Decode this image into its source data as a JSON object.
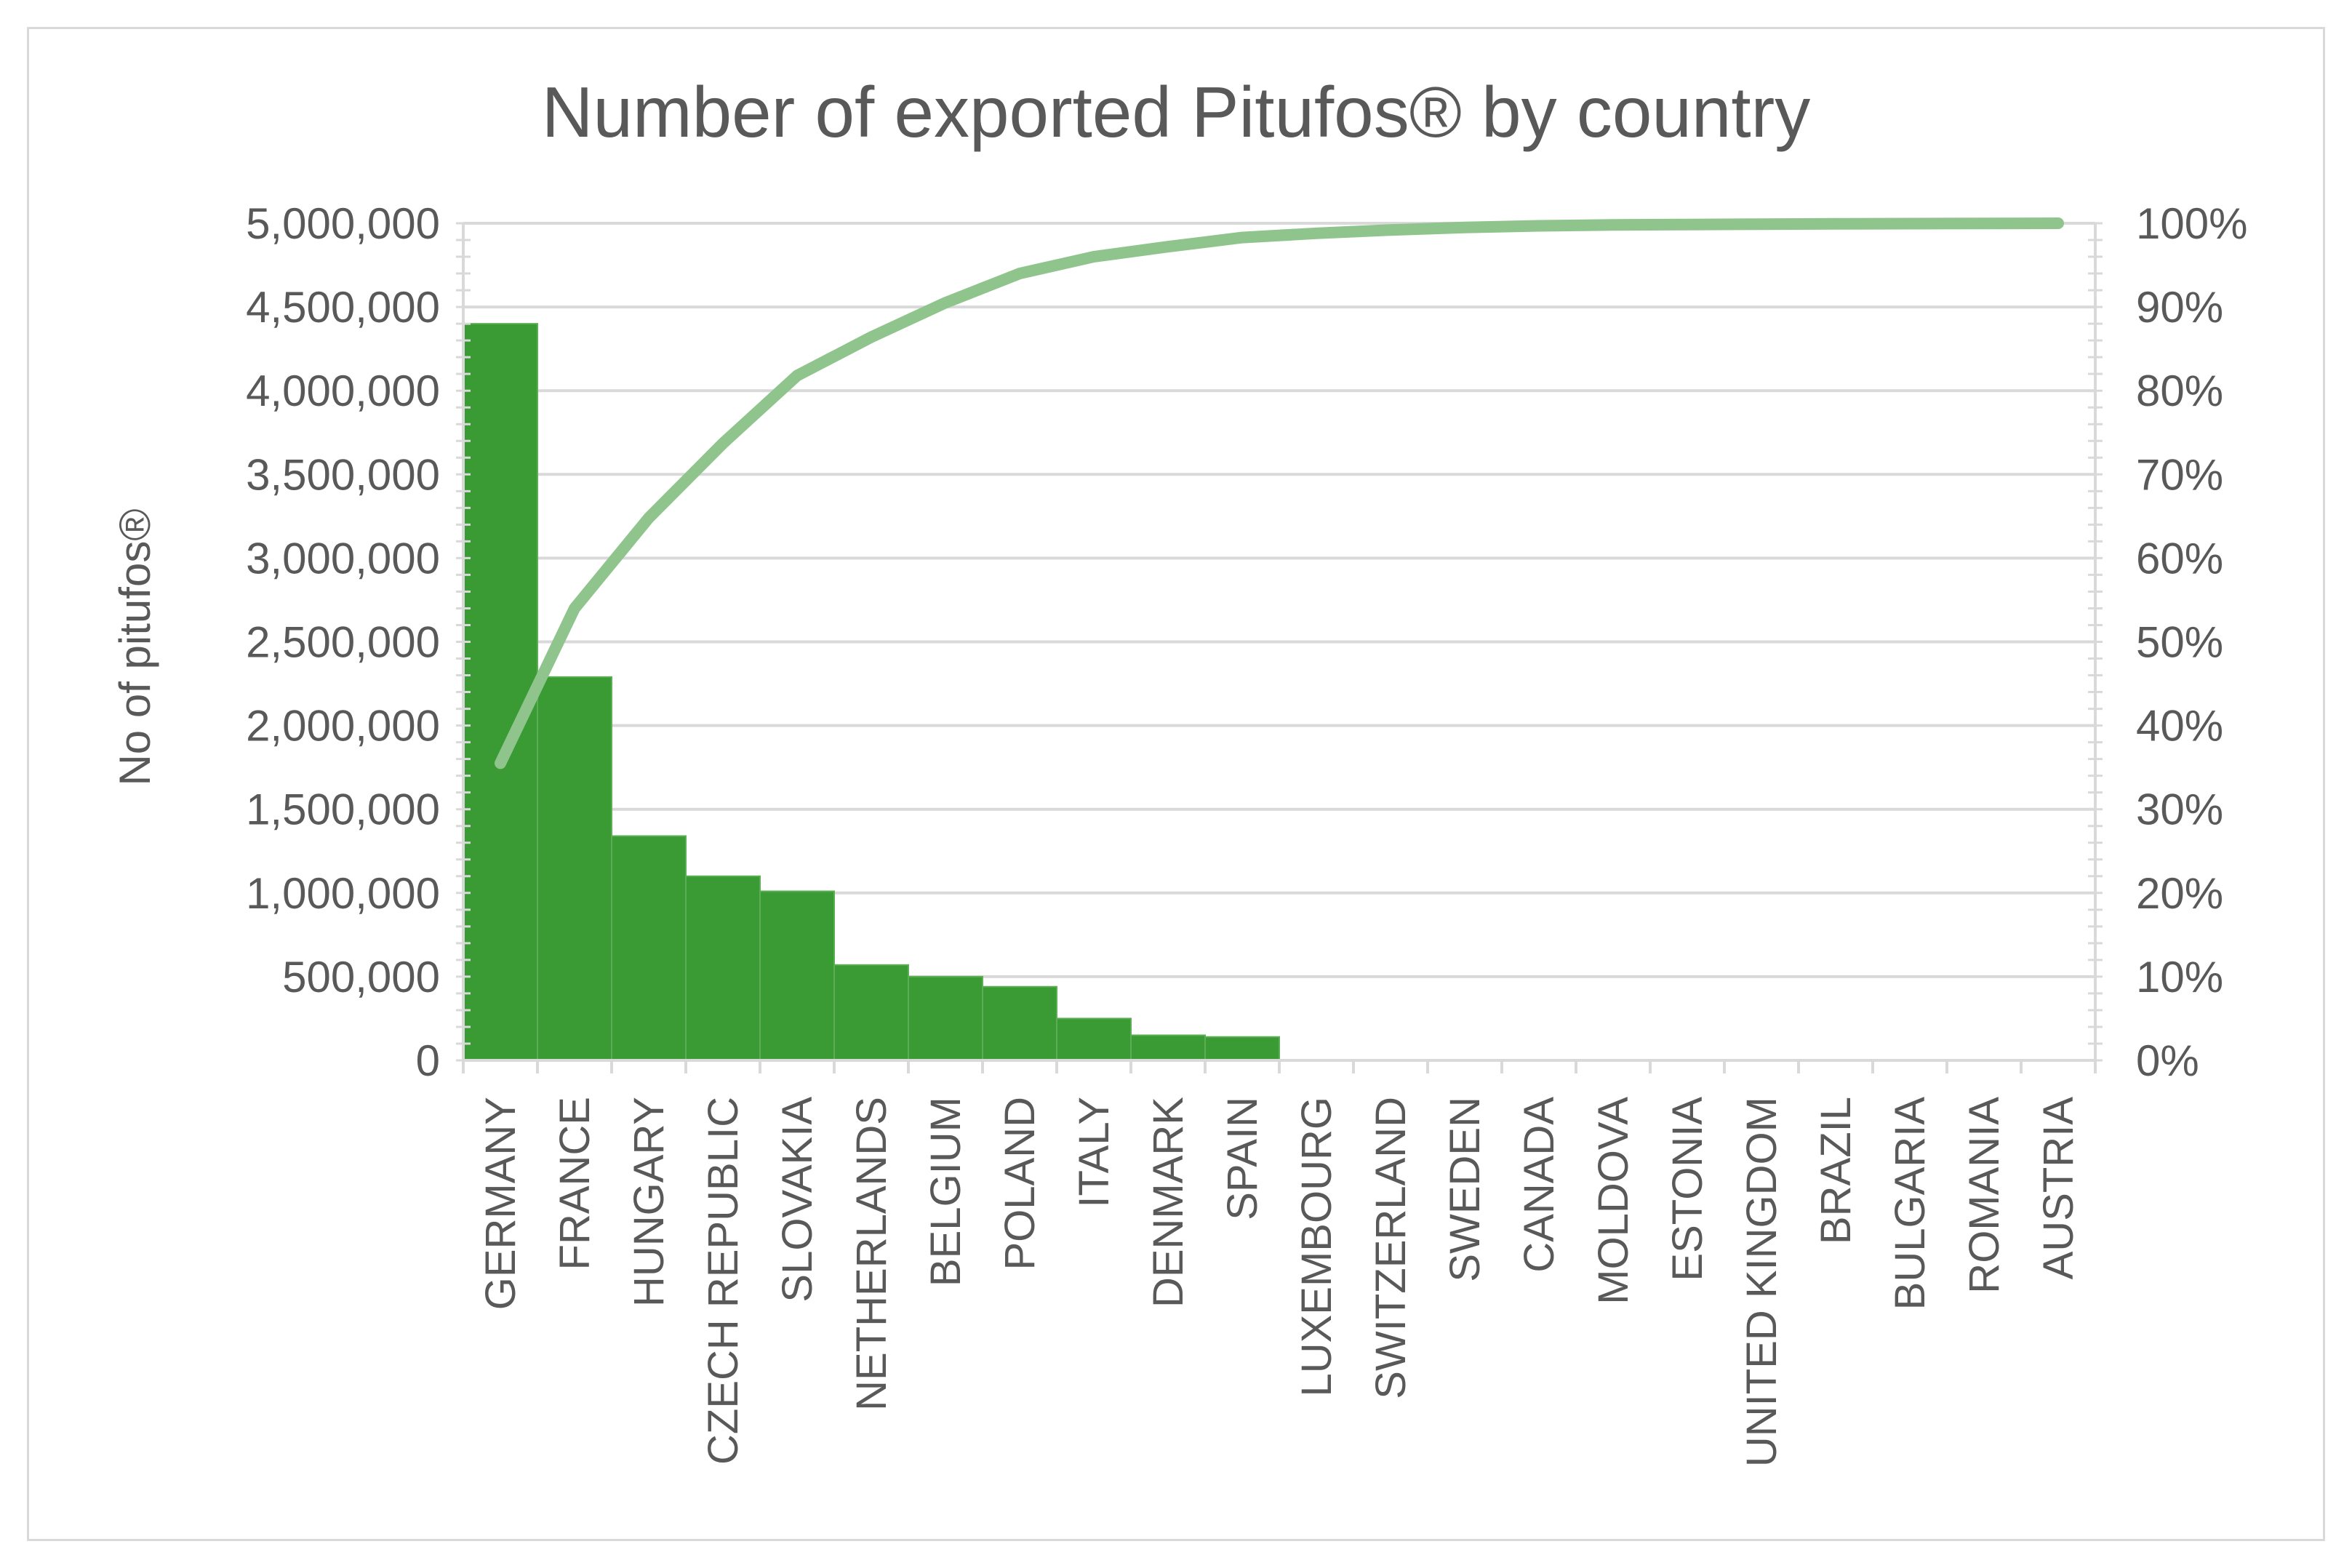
{
  "chart_data": {
    "type": "bar",
    "title": "Number of exported Pitufos® by country",
    "ylabel": "No of pitufos®",
    "xlabel": "",
    "ylim": [
      0,
      5000000
    ],
    "y2lim": [
      0,
      1
    ],
    "yticks": [
      "0",
      "500,000",
      "1,000,000",
      "1,500,000",
      "2,000,000",
      "2,500,000",
      "3,000,000",
      "3,500,000",
      "4,000,000",
      "4,500,000",
      "5,000,000"
    ],
    "y2ticks": [
      "0%",
      "10%",
      "20%",
      "30%",
      "40%",
      "50%",
      "60%",
      "70%",
      "80%",
      "90%",
      "100%"
    ],
    "grid": true,
    "legend": "none",
    "categories": [
      "GERMANY",
      "FRANCE",
      "HUNGARY",
      "CZECH REPUBLIC",
      "SLOVAKIA",
      "NETHERLANDS",
      "BELGIUM",
      "POLAND",
      "ITALY",
      "DENMARK",
      "SPAIN",
      "LUXEMBOURG",
      "SWITZERLAND",
      "SWEDEN",
      "CANADA",
      "MOLDOVA",
      "ESTONIA",
      "UNITED KINGDOM",
      "BRAZIL",
      "BULGARIA",
      "ROMANIA",
      "AUSTRIA"
    ],
    "series": [
      {
        "type": "bar",
        "values": [
          4400000,
          2290000,
          1340000,
          1100000,
          1010000,
          570000,
          500000,
          440000,
          250000,
          150000,
          140000,
          0,
          0,
          0,
          0,
          0,
          0,
          0,
          0,
          0,
          0,
          0
        ],
        "color": "#3a9a33"
      },
      {
        "type": "line",
        "axis": "right",
        "values": [
          0.355,
          0.54,
          0.648,
          0.737,
          0.818,
          0.864,
          0.905,
          0.94,
          0.96,
          0.972,
          0.983,
          0.988,
          0.992,
          0.995,
          0.997,
          0.998,
          0.9985,
          0.999,
          0.9993,
          0.9996,
          0.9998,
          1.0
        ],
        "color": "#8fc58c"
      }
    ]
  }
}
